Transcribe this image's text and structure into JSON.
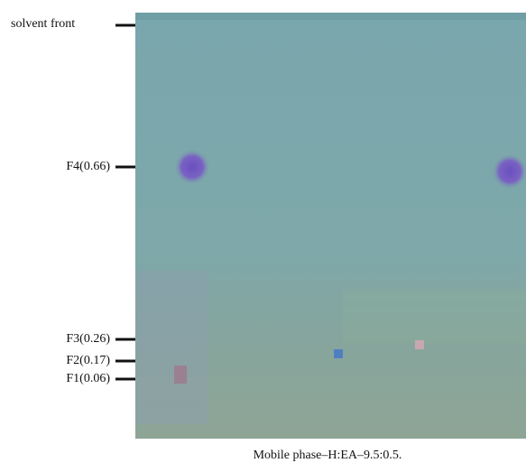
{
  "markers": [
    {
      "label": "solvent front"
    },
    {
      "label": "F4(0.66)"
    },
    {
      "label": "F3(0.26)"
    },
    {
      "label": "F2(0.17)"
    },
    {
      "label": "F1(0.06)"
    }
  ],
  "caption": "Mobile phase–H:EA–9.5:0.5."
}
